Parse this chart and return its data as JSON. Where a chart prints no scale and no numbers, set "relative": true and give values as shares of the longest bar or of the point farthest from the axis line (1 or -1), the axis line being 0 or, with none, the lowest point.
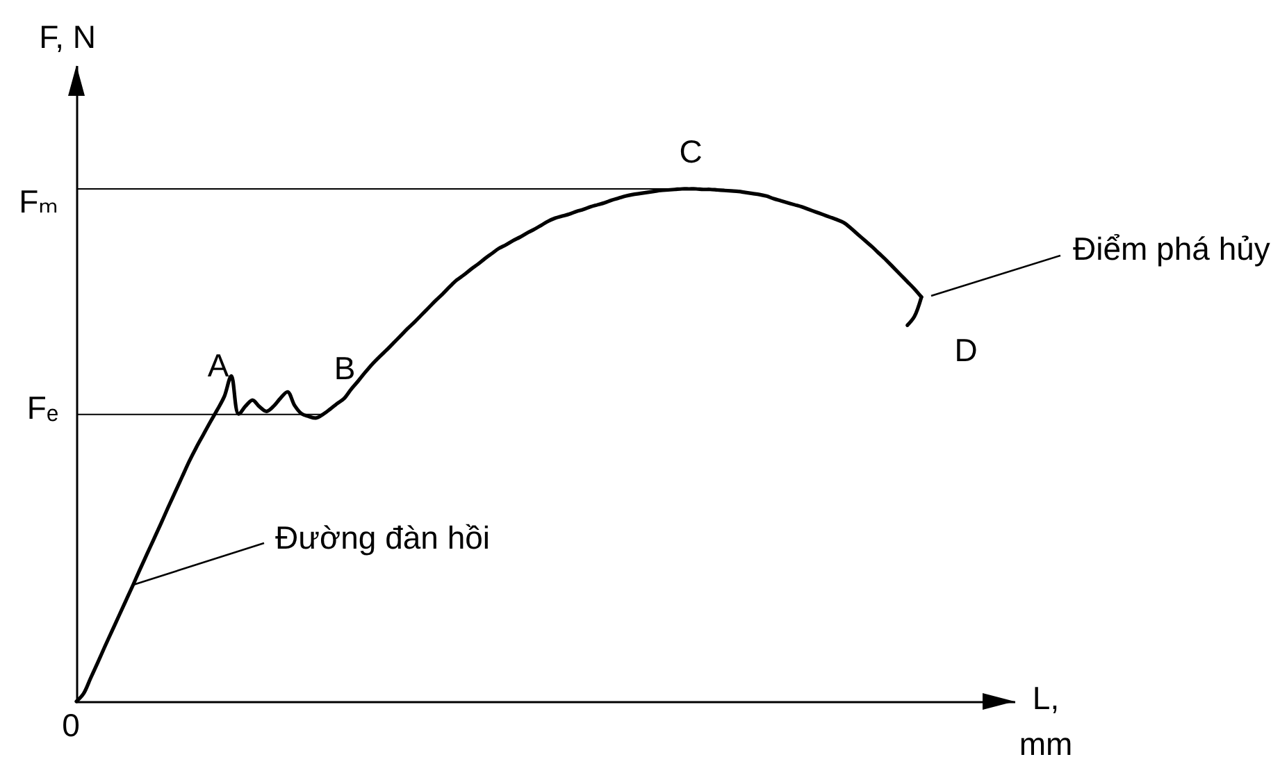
{
  "chart_data": {
    "type": "line",
    "relative": true,
    "xlabel": "L, mm",
    "ylabel": "F, N",
    "categories": [
      null,
      null,
      null,
      null,
      null,
      null,
      null,
      null,
      null,
      null,
      null,
      null,
      null,
      null,
      null,
      null,
      null,
      null,
      null,
      null,
      null,
      null,
      null,
      null,
      null,
      null,
      null,
      null,
      null,
      null,
      null,
      null,
      null,
      null,
      null,
      null,
      null,
      null,
      null,
      null,
      null,
      null,
      null,
      null,
      null,
      null,
      null,
      null,
      null,
      null,
      null,
      null,
      null,
      null,
      null,
      null,
      null,
      null,
      null,
      null,
      null,
      null,
      null,
      null,
      null,
      null,
      null,
      null,
      null,
      null,
      null,
      null,
      null,
      null,
      null,
      null,
      null,
      null,
      null,
      null,
      null,
      null,
      null,
      null,
      null,
      null,
      null,
      null,
      null,
      null,
      null,
      null,
      null,
      null,
      null,
      null,
      null,
      null,
      null,
      null,
      null,
      null,
      null,
      null,
      null,
      null,
      null,
      null,
      null,
      null,
      null,
      null,
      null,
      null,
      null,
      null,
      null,
      null,
      null,
      null,
      null
    ],
    "series": [
      {
        "color": "#000000",
        "values": [
          0,
          0.015,
          0.045,
          0.075,
          0.106,
          0.136,
          0.166,
          0.196,
          0.226,
          0.257,
          0.287,
          0.317,
          0.347,
          0.378,
          0.408,
          0.438,
          0.468,
          0.495,
          0.52,
          0.545,
          0.569,
          0.595,
          0.635,
          0.561,
          0.576,
          0.588,
          0.575,
          0.566,
          0.576,
          0.592,
          0.604,
          0.577,
          0.561,
          0.556,
          0.553,
          0.56,
          0.57,
          0.581,
          0.591,
          0.609,
          0.625,
          0.642,
          0.658,
          0.672,
          0.685,
          0.699,
          0.713,
          0.727,
          0.74,
          0.754,
          0.768,
          0.782,
          0.795,
          0.809,
          0.822,
          0.832,
          0.843,
          0.853,
          0.864,
          0.874,
          0.884,
          0.891,
          0.899,
          0.906,
          0.914,
          0.921,
          0.929,
          0.937,
          0.943,
          0.947,
          0.951,
          0.956,
          0.96,
          0.965,
          0.969,
          0.973,
          0.978,
          0.982,
          0.986,
          0.989,
          0.991,
          0.993,
          0.995,
          0.997,
          0.998,
          0.999,
          1,
          1,
          1,
          0.999,
          0.999,
          0.998,
          0.997,
          0.996,
          0.995,
          0.993,
          0.991,
          0.989,
          0.986,
          0.981,
          0.977,
          0.973,
          0.969,
          0.965,
          0.96,
          0.955,
          0.95,
          0.945,
          0.94,
          0.934,
          0.923,
          0.911,
          0.899,
          0.887,
          0.874,
          0.861,
          0.847,
          0.833,
          0.819,
          0.805,
          0.789
        ]
      },
      {
        "color": "#000000",
        "values": [
          null,
          null,
          null,
          null,
          null,
          null,
          null,
          null,
          null,
          null,
          null,
          null,
          null,
          null,
          null,
          null,
          null,
          null,
          null,
          null,
          null,
          null,
          null,
          null,
          null,
          null,
          null,
          null,
          null,
          null,
          null,
          null,
          null,
          null,
          null,
          null,
          null,
          null,
          null,
          null,
          null,
          null,
          null,
          null,
          null,
          null,
          null,
          null,
          null,
          null,
          null,
          null,
          null,
          null,
          null,
          null,
          null,
          null,
          null,
          null,
          null,
          null,
          null,
          null,
          null,
          null,
          null,
          null,
          null,
          null,
          null,
          null,
          null,
          null,
          null,
          null,
          null,
          null,
          null,
          null,
          null,
          null,
          null,
          null,
          null,
          null,
          null,
          null,
          null,
          null,
          null,
          null,
          null,
          null,
          null,
          null,
          null,
          null,
          null,
          null,
          null,
          null,
          null,
          null,
          null,
          null,
          null,
          null,
          null,
          null,
          null,
          null,
          null,
          null,
          null,
          null,
          null,
          null,
          0.734,
          0.751,
          0.789
        ]
      }
    ],
    "ref_lines": [
      {
        "axis": "y",
        "value": 1,
        "label": "Fₘ"
      },
      {
        "axis": "y",
        "value": 0.56,
        "label": "Fₑ"
      }
    ],
    "annotations": [
      "A",
      "B",
      "C",
      "D",
      "Đường đàn hồi",
      "Điểm phá hủy",
      "0"
    ]
  }
}
